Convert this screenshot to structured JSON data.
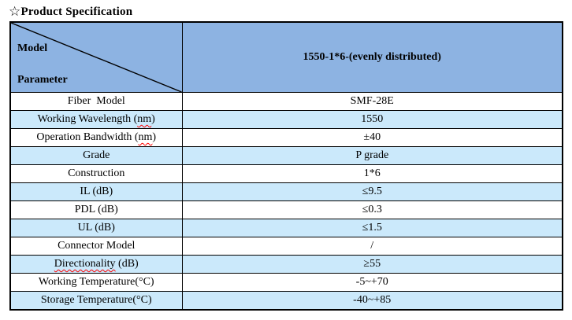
{
  "title_star": "☆",
  "title_text": "Product Specification",
  "colors": {
    "header_blue": "#8DB3E2",
    "row_blue": "#CBE9FB",
    "border_black": "#000000",
    "spellcheck_red": "#FF0000"
  },
  "table": {
    "header": {
      "model_label": "Model",
      "parameter_label": "Parameter",
      "column_title": "1550-1*6-(evenly distributed)"
    },
    "rows": [
      {
        "param": "Fiber  Model",
        "value": "SMF-28E"
      },
      {
        "param": "Working Wavelength (nm)",
        "value": "1550",
        "wavy": "nm"
      },
      {
        "param": "Operation Bandwidth (nm)",
        "value": "±40",
        "wavy": "nm"
      },
      {
        "param": "Grade",
        "value": "P grade"
      },
      {
        "param": "Construction",
        "value": "1*6"
      },
      {
        "param": "IL (dB)",
        "value": "≤9.5"
      },
      {
        "param": "PDL (dB)",
        "value": "≤0.3"
      },
      {
        "param": "UL (dB)",
        "value": "≤1.5"
      },
      {
        "param": "Connector Model",
        "value": "/"
      },
      {
        "param": "Directionality (dB)",
        "value": "≥55",
        "wavy": "Directionality"
      },
      {
        "param": "Working Temperature(°C)",
        "value": "-5~+70"
      },
      {
        "param": "Storage Temperature(°C)",
        "value": "-40~+85"
      }
    ]
  }
}
